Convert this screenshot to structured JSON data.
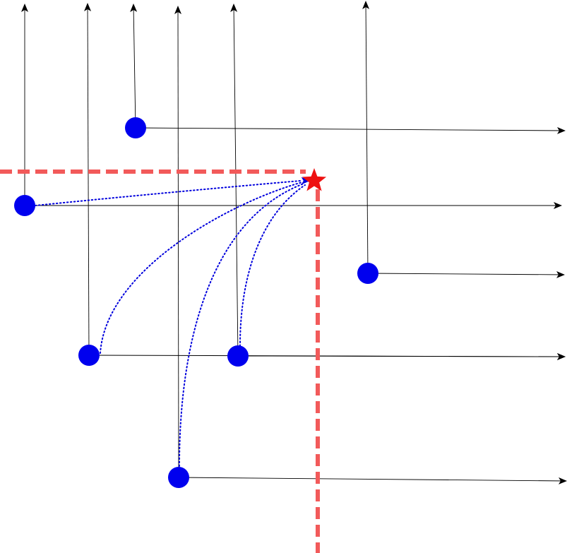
{
  "colors": {
    "background": "#ffffff",
    "point_fill": "#0000ee",
    "arrow_line": "#000000",
    "dominance_path": "#0000dd",
    "boundary": "#f25a5a",
    "target_star": "#ee1111"
  },
  "legend": null,
  "points": [
    {
      "id": "p1",
      "label": "",
      "has_dotted_path_to_target": false
    },
    {
      "id": "p2",
      "label": "",
      "has_dotted_path_to_target": true
    },
    {
      "id": "p3",
      "label": "",
      "has_dotted_path_to_target": false
    },
    {
      "id": "p4",
      "label": "",
      "has_dotted_path_to_target": true
    },
    {
      "id": "p5",
      "label": "",
      "has_dotted_path_to_target": true
    },
    {
      "id": "p6",
      "label": "",
      "has_dotted_path_to_target": true
    }
  ],
  "target": {
    "marker": "star-icon",
    "label": ""
  },
  "boundary": {
    "style": "dashed",
    "shape": "corner"
  }
}
